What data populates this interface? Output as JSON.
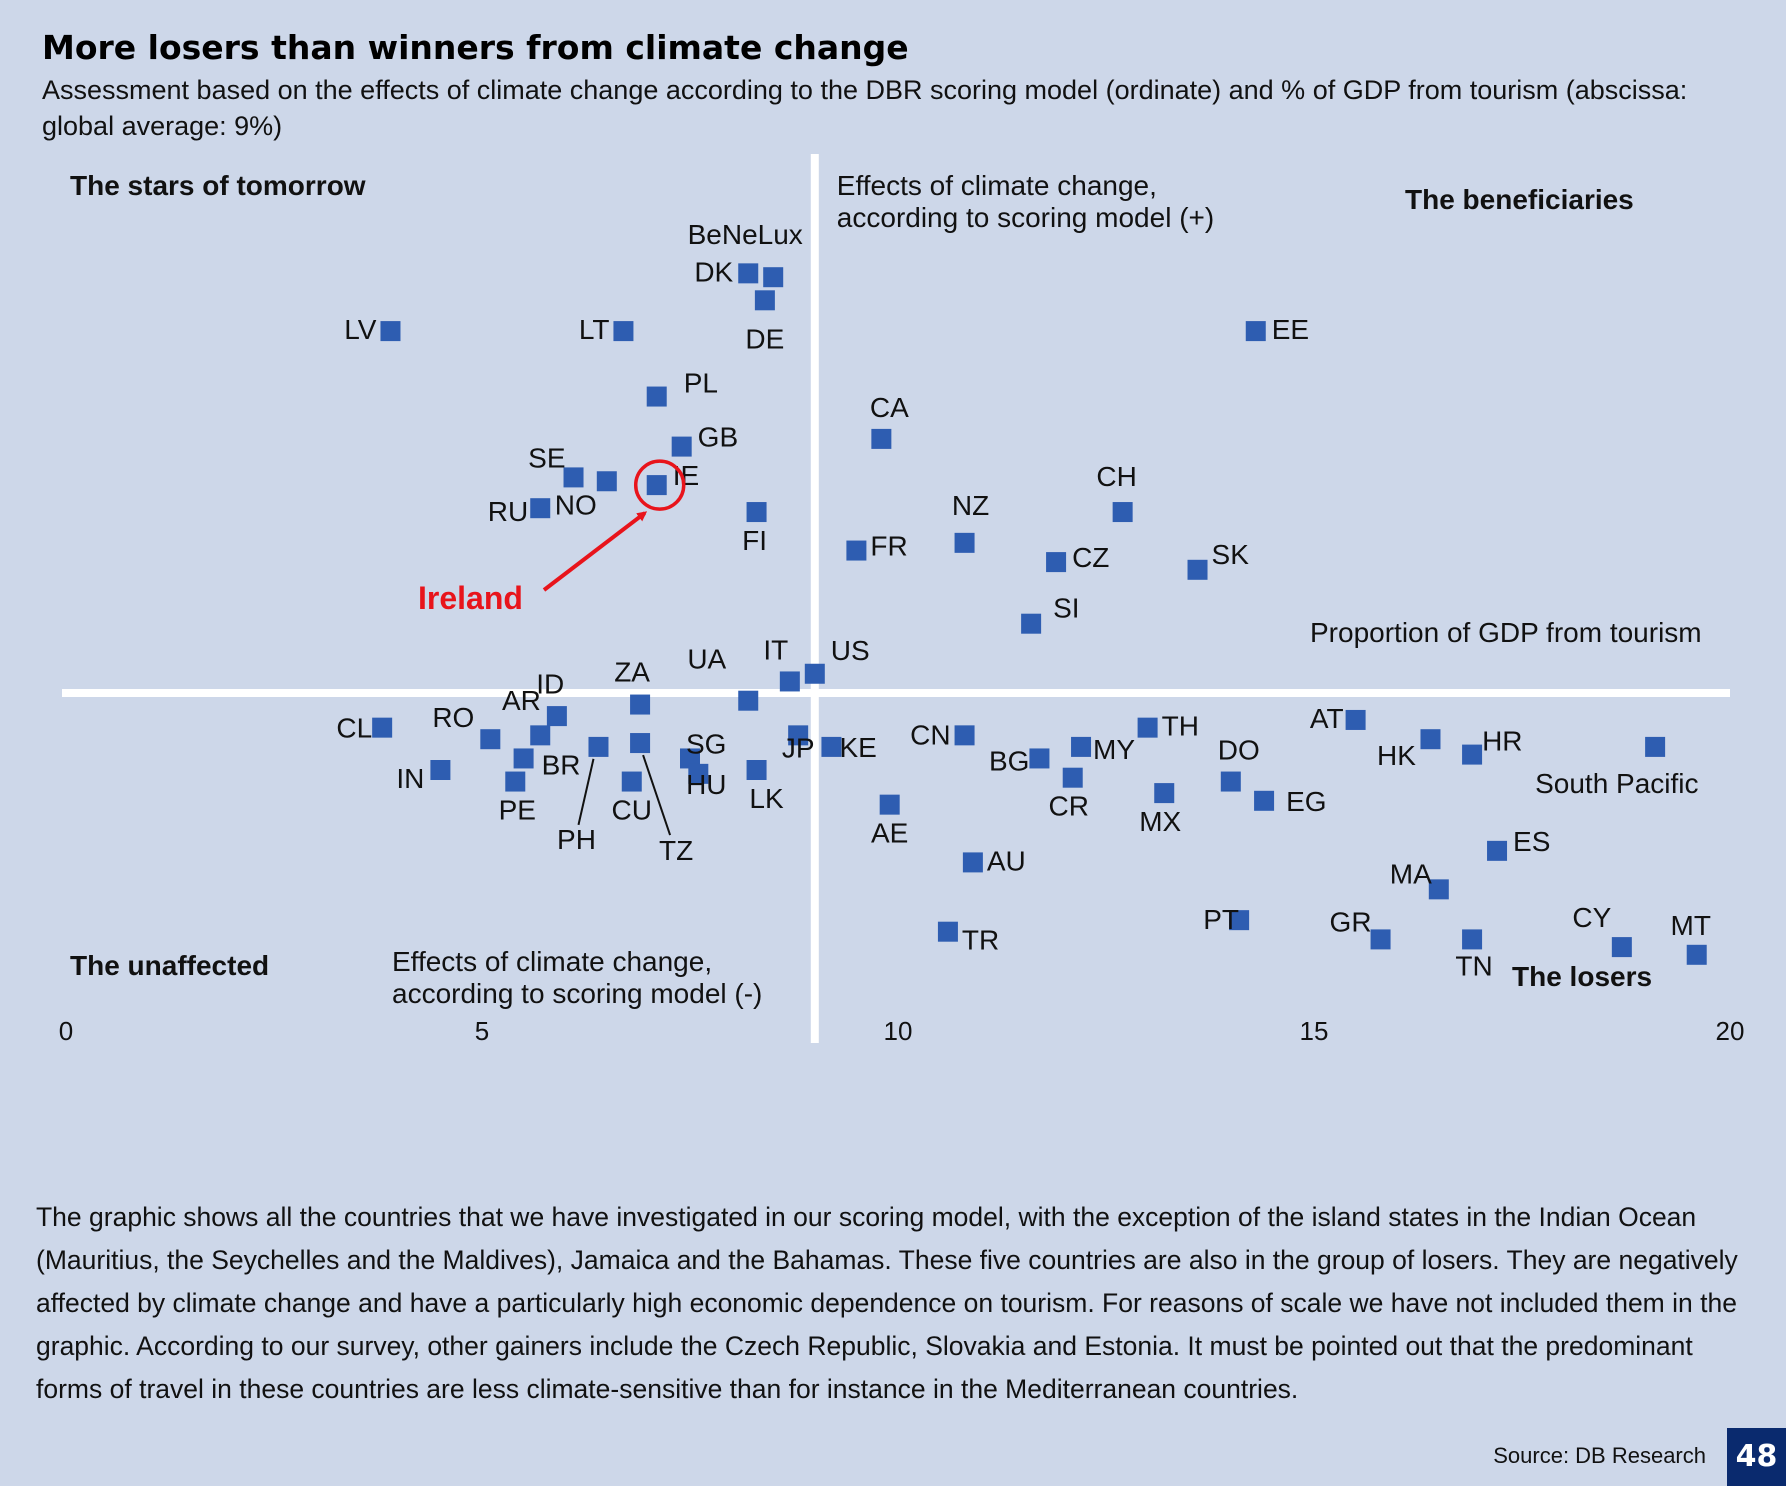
{
  "header": {
    "title": "More losers than winners from climate change",
    "subtitle": "Assessment based on the effects of climate change according to the DBR scoring model (ordinate) and % of GDP from tourism (abscissa: global average: 9%)"
  },
  "chart_data": {
    "type": "scatter",
    "xlim": [
      0,
      20
    ],
    "x_ticks": [
      0,
      5,
      10,
      15,
      20
    ],
    "x_crosshair": 9,
    "points": [
      {
        "label": "BeNeLux",
        "x": 8.5,
        "y": 5.4
      },
      {
        "label": "DK",
        "x": 8.2,
        "y": 5.45
      },
      {
        "label": "DE",
        "x": 8.4,
        "y": 5.1
      },
      {
        "label": "LV",
        "x": 3.9,
        "y": 4.7
      },
      {
        "label": "LT",
        "x": 6.7,
        "y": 4.7
      },
      {
        "label": "EE",
        "x": 14.3,
        "y": 4.7
      },
      {
        "label": "PL",
        "x": 7.1,
        "y": 3.85
      },
      {
        "label": "CA",
        "x": 9.8,
        "y": 3.3
      },
      {
        "label": "GB",
        "x": 7.4,
        "y": 3.2
      },
      {
        "label": "SE",
        "x": 6.1,
        "y": 2.8
      },
      {
        "label": "NO",
        "x": 6.5,
        "y": 2.75
      },
      {
        "label": "IE",
        "x": 7.1,
        "y": 2.7
      },
      {
        "label": "RU",
        "x": 5.7,
        "y": 2.4
      },
      {
        "label": "FI",
        "x": 8.3,
        "y": 2.35
      },
      {
        "label": "CH",
        "x": 12.7,
        "y": 2.35
      },
      {
        "label": "NZ",
        "x": 10.8,
        "y": 1.95
      },
      {
        "label": "FR",
        "x": 9.5,
        "y": 1.85
      },
      {
        "label": "CZ",
        "x": 11.9,
        "y": 1.7
      },
      {
        "label": "SK",
        "x": 13.6,
        "y": 1.6
      },
      {
        "label": "SI",
        "x": 11.6,
        "y": 0.9
      },
      {
        "label": "US",
        "x": 9.0,
        "y": 0.25
      },
      {
        "label": "IT",
        "x": 8.7,
        "y": 0.15
      },
      {
        "label": "UA",
        "x": 8.2,
        "y": -0.1
      },
      {
        "label": "ZA",
        "x": 6.9,
        "y": -0.15
      },
      {
        "label": "AR",
        "x": 5.9,
        "y": -0.3
      },
      {
        "label": "CL",
        "x": 3.8,
        "y": -0.45
      },
      {
        "label": "ID",
        "x": 5.7,
        "y": -0.55
      },
      {
        "label": "RO",
        "x": 5.1,
        "y": -0.6
      },
      {
        "label": "SG",
        "x": 7.5,
        "y": -0.85
      },
      {
        "label": "JP",
        "x": 8.8,
        "y": -0.55
      },
      {
        "label": "KE",
        "x": 9.2,
        "y": -0.7
      },
      {
        "label": "CN",
        "x": 10.8,
        "y": -0.55
      },
      {
        "label": "BR",
        "x": 5.5,
        "y": -0.85
      },
      {
        "label": "PH",
        "x": 6.4,
        "y": -0.7
      },
      {
        "label": "TZ",
        "x": 6.9,
        "y": -0.65
      },
      {
        "label": "HU",
        "x": 7.6,
        "y": -1.05
      },
      {
        "label": "IN",
        "x": 4.5,
        "y": -1.0
      },
      {
        "label": "PE",
        "x": 5.4,
        "y": -1.15
      },
      {
        "label": "CU",
        "x": 6.8,
        "y": -1.15
      },
      {
        "label": "LK",
        "x": 8.3,
        "y": -1.0
      },
      {
        "label": "BG",
        "x": 11.7,
        "y": -0.85
      },
      {
        "label": "MY",
        "x": 12.2,
        "y": -0.7
      },
      {
        "label": "TH",
        "x": 13.0,
        "y": -0.45
      },
      {
        "label": "CR",
        "x": 12.1,
        "y": -1.1
      },
      {
        "label": "MX",
        "x": 13.2,
        "y": -1.3
      },
      {
        "label": "DO",
        "x": 14.0,
        "y": -1.15
      },
      {
        "label": "EG",
        "x": 14.4,
        "y": -1.4
      },
      {
        "label": "AT",
        "x": 15.5,
        "y": -0.35
      },
      {
        "label": "HK",
        "x": 16.4,
        "y": -0.6
      },
      {
        "label": "HR",
        "x": 16.9,
        "y": -0.8
      },
      {
        "label": "South Pacific",
        "x": 19.1,
        "y": -0.7
      },
      {
        "label": "AE",
        "x": 9.9,
        "y": -1.45
      },
      {
        "label": "AU",
        "x": 10.9,
        "y": -2.2
      },
      {
        "label": "ES",
        "x": 17.2,
        "y": -2.05
      },
      {
        "label": "MA",
        "x": 16.5,
        "y": -2.55
      },
      {
        "label": "PT",
        "x": 14.1,
        "y": -2.95
      },
      {
        "label": "GR",
        "x": 15.8,
        "y": -3.2
      },
      {
        "label": "TN",
        "x": 16.9,
        "y": -3.2
      },
      {
        "label": "TR",
        "x": 10.6,
        "y": -3.1
      },
      {
        "label": "CY",
        "x": 18.7,
        "y": -3.3
      },
      {
        "label": "MT",
        "x": 19.6,
        "y": -3.4
      }
    ],
    "quadrants": {
      "top_left": "The stars of tomorrow",
      "top_right": "The beneficiaries",
      "bottom_left": "The unaffected",
      "bottom_right": "The losers"
    },
    "annotations": {
      "y_positive": "Effects of climate change, according to scoring model (+)",
      "y_negative": "Effects of climate change, according to scoring model (-)",
      "x_axis": "Proportion of GDP from tourism",
      "highlight": "Ireland",
      "highlight_target": "IE",
      "highlight_color": "#e8141b"
    },
    "marker_color": "#2e5db1",
    "grid": false
  },
  "footer": {
    "description": "The graphic shows all the countries that we have investigated in our scoring model, with the exception of the island states in the Indian Ocean (Mauritius, the Seychelles and the Maldives), Jamaica and the Bahamas. These five countries are also in the group of losers. They are negatively affected by climate change and have a particularly high economic dependence on tourism. For reasons of scale we have not included them in the graphic. According to our survey, other gainers include the Czech Republic, Slovakia and Estonia. It must be pointed out that the predominant forms of travel in these countries are less climate-sensitive than for instance in the Mediterranean countries.",
    "source": "Source: DB Research",
    "page_number": "48"
  }
}
